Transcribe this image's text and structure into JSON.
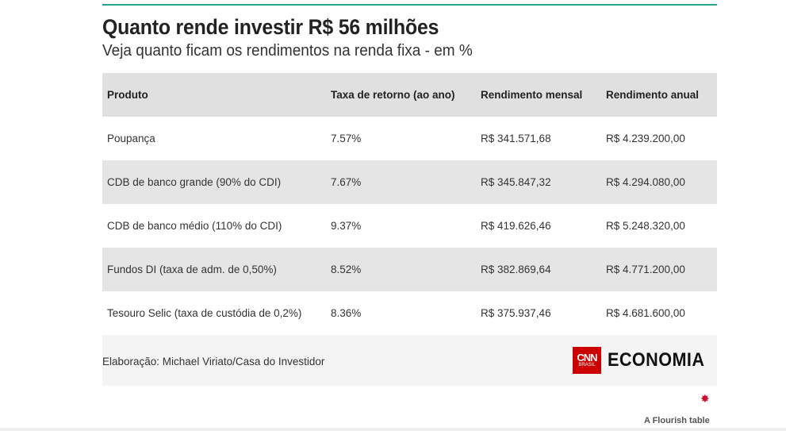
{
  "title": "Quanto rende investir R$ 56 milhões",
  "subtitle": "Veja quanto ficam os rendimentos na renda fixa - em %",
  "table": {
    "headers": [
      "Produto",
      "Taxa de retorno (ao ano)",
      "Rendimento mensal",
      "Rendimento anual"
    ],
    "rows": [
      [
        "Poupança",
        "7.57%",
        "R$ 341.571,68",
        "R$ 4.239.200,00"
      ],
      [
        "CDB de banco grande (90% do CDI)",
        "7.67%",
        "R$ 345.847,32",
        "R$ 4.294.080,00"
      ],
      [
        "CDB de banco médio (110% do CDI)",
        "9.37%",
        "R$ 419.626,46",
        "R$ 5.248.320,00"
      ],
      [
        "Fundos DI (taxa de adm. de 0,50%)",
        "8.52%",
        "R$ 382.869,64",
        "R$ 4.771.200,00"
      ],
      [
        "Tesouro Selic (taxa de custódia de 0,2%)",
        "8.36%",
        "R$ 375.937,46",
        "R$ 4.681.600,00"
      ]
    ]
  },
  "footer": {
    "source": "Elaboração: Michael Viriato/Casa do Investidor",
    "logo_cnn": "CNN",
    "logo_brasil": "BRASIL",
    "logo_economia": "ECONOMIA"
  },
  "flourish_label": "A Flourish table",
  "colors": {
    "accent": "#2aa394",
    "header_bg": "#e0e0e0",
    "stripe_bg": "#e5e5e5",
    "cnn_red": "#cc0000"
  }
}
